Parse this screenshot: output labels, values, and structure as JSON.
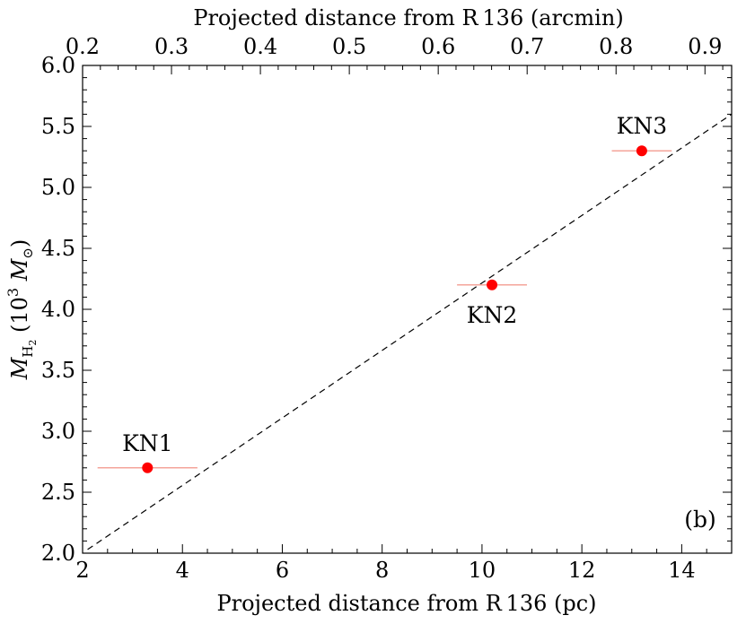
{
  "chart_data": {
    "type": "scatter",
    "panel_label": "(b)",
    "xlabel": "Projected distance from R 136 (pc)",
    "xlabel_top": "Projected distance from R 136 (arcmin)",
    "ylabel_parts": {
      "m": "M",
      "sub": "H",
      "subsub": "2",
      "unit_open": " (10",
      "exp": "3",
      "unit_m": " M",
      "sun": "⊙",
      "unit_close": ")"
    },
    "xlim": [
      2,
      15
    ],
    "ylim": [
      2.0,
      6.0
    ],
    "xlim_top": [
      0.2,
      0.93
    ],
    "x_ticks": [
      2,
      4,
      6,
      8,
      10,
      12,
      14
    ],
    "x_tick_labels": [
      "2",
      "4",
      "6",
      "8",
      "10",
      "12",
      "14"
    ],
    "x_top_ticks": [
      0.2,
      0.3,
      0.4,
      0.5,
      0.6,
      0.7,
      0.8,
      0.9
    ],
    "x_top_tick_labels": [
      "0.2",
      "0.3",
      "0.4",
      "0.5",
      "0.6",
      "0.7",
      "0.8",
      "0.9"
    ],
    "y_ticks": [
      2.0,
      2.5,
      3.0,
      3.5,
      4.0,
      4.5,
      5.0,
      5.5,
      6.0
    ],
    "y_tick_labels": [
      "2.0",
      "2.5",
      "3.0",
      "3.5",
      "4.0",
      "4.5",
      "5.0",
      "5.5",
      "6.0"
    ],
    "points": [
      {
        "label": "KN1",
        "x": 3.3,
        "y": 2.7,
        "xerr": 1.0,
        "label_pos": "above"
      },
      {
        "label": "KN2",
        "x": 10.2,
        "y": 4.2,
        "xerr": 0.7,
        "label_pos": "below"
      },
      {
        "label": "KN3",
        "x": 13.2,
        "y": 5.3,
        "xerr": 0.6,
        "label_pos": "above"
      }
    ],
    "fit_line": {
      "style": "dashed",
      "x": [
        2.1,
        15.0
      ],
      "y": [
        2.03,
        5.6
      ]
    },
    "colors": {
      "points": "#ff0000",
      "errorbars": "#f4a49a",
      "fit": "#000000"
    }
  }
}
